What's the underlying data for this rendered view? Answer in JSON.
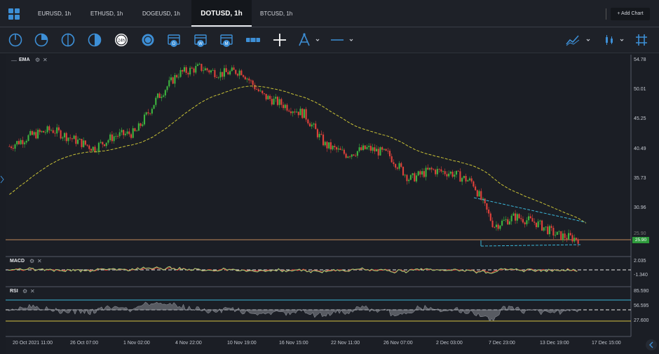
{
  "tabs": [
    {
      "label": "EURUSD, 1h"
    },
    {
      "label": "ETHUSD, 1h"
    },
    {
      "label": "DOGEUSD, 1h"
    },
    {
      "label": "DOTUSD, 1h"
    },
    {
      "label": "BTCUSD, 1h"
    }
  ],
  "add_chart_label": "+ Add Chart",
  "main_indicator": "EMA",
  "price_axis": [
    "54.78",
    "50.01",
    "45.25",
    "40.49",
    "35.73",
    "30.96",
    "25.90"
  ],
  "last_price": "25.90",
  "macd": {
    "label": "MACD",
    "axis": [
      "2.035",
      "-1.340"
    ]
  },
  "rsi": {
    "label": "RSI",
    "axis": [
      "85.590",
      "56.595",
      "27.600"
    ]
  },
  "time_axis": [
    "20 Oct 2021 11:00",
    "26 Oct 07:00",
    "1 Nov 02:00",
    "4 Nov 22:00",
    "10 Nov 19:00",
    "16 Nov 15:00",
    "22 Nov 11:00",
    "26 Nov 07:00",
    "2 Dec 03:00",
    "7 Dec 23:00",
    "13 Dec 19:00",
    "17 Dec 15:00"
  ],
  "colors": {
    "up": "#3db43f",
    "down": "#e0413a",
    "ema": "#c9c236",
    "trend": "#3bb6d8",
    "accent": "#3d8fd6"
  },
  "chart_data": {
    "type": "candlestick",
    "symbol": "DOTUSD",
    "interval": "1h",
    "close_path": [
      [
        "20 Oct 2021 11:00",
        40.8
      ],
      [
        "22 Oct",
        42.5
      ],
      [
        "24 Oct",
        43.5
      ],
      [
        "26 Oct 07:00",
        42.0
      ],
      [
        "27 Oct",
        40.5
      ],
      [
        "29 Oct",
        42.5
      ],
      [
        "31 Oct",
        43.0
      ],
      [
        "1 Nov 02:00",
        48.5
      ],
      [
        "3 Nov",
        52.5
      ],
      [
        "4 Nov 22:00",
        53.5
      ],
      [
        "6 Nov",
        52.5
      ],
      [
        "8 Nov",
        53.0
      ],
      [
        "10 Nov 19:00",
        49.0
      ],
      [
        "12 Nov",
        47.5
      ],
      [
        "14 Nov",
        46.0
      ],
      [
        "16 Nov 15:00",
        41.0
      ],
      [
        "19 Nov",
        39.5
      ],
      [
        "22 Nov 11:00",
        40.5
      ],
      [
        "24 Nov",
        39.5
      ],
      [
        "26 Nov 07:00",
        35.5
      ],
      [
        "29 Nov",
        37.0
      ],
      [
        "2 Dec 03:00",
        36.5
      ],
      [
        "4 Dec",
        35.0
      ],
      [
        "6 Dec",
        28.0
      ],
      [
        "7 Dec 23:00",
        29.5
      ],
      [
        "10 Dec",
        28.5
      ],
      [
        "12 Dec",
        26.5
      ],
      [
        "14 Dec",
        25.9
      ]
    ],
    "last_price": 25.9
  }
}
